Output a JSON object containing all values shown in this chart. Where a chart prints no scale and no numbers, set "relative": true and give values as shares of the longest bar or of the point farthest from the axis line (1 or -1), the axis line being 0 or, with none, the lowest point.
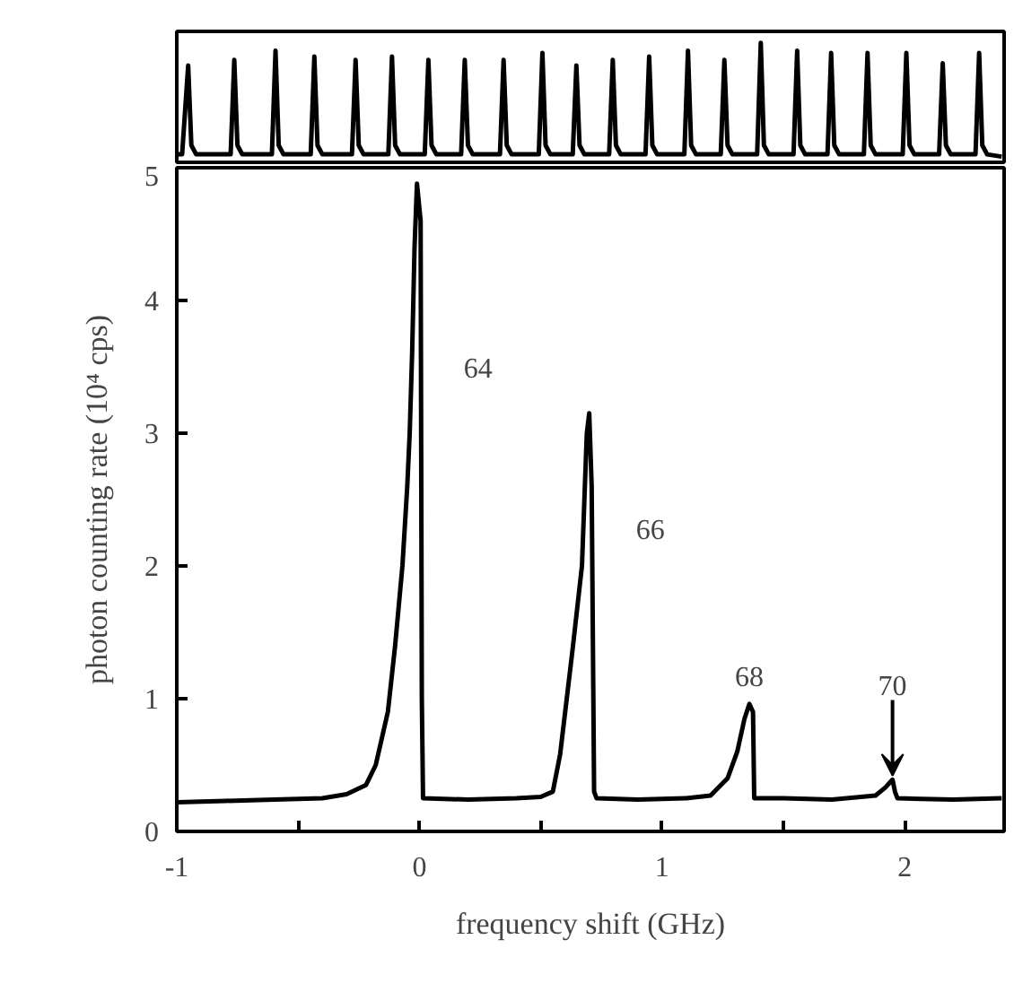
{
  "chart_data": [
    {
      "type": "line",
      "relative": true,
      "grid": false,
      "xlim": [
        -1,
        2.41
      ],
      "color": "#000000",
      "x": [
        -1.0,
        -0.978,
        -0.953,
        -0.94,
        -0.92,
        -0.8,
        -0.778,
        -0.763,
        -0.75,
        -0.73,
        -0.63,
        -0.608,
        -0.593,
        -0.58,
        -0.56,
        -0.47,
        -0.448,
        -0.433,
        -0.42,
        -0.4,
        -0.3,
        -0.278,
        -0.263,
        -0.25,
        -0.23,
        -0.15,
        -0.128,
        -0.113,
        -0.1,
        -0.08,
        0.0,
        0.022,
        0.037,
        0.05,
        0.07,
        0.15,
        0.172,
        0.187,
        0.2,
        0.22,
        0.31,
        0.332,
        0.347,
        0.36,
        0.38,
        0.47,
        0.492,
        0.507,
        0.52,
        0.54,
        0.61,
        0.632,
        0.647,
        0.66,
        0.68,
        0.76,
        0.782,
        0.797,
        0.81,
        0.83,
        0.91,
        0.932,
        0.947,
        0.96,
        0.98,
        1.07,
        1.092,
        1.107,
        1.12,
        1.14,
        1.22,
        1.242,
        1.257,
        1.27,
        1.29,
        1.37,
        1.392,
        1.407,
        1.42,
        1.44,
        1.52,
        1.542,
        1.557,
        1.57,
        1.59,
        1.66,
        1.682,
        1.697,
        1.71,
        1.73,
        1.81,
        1.832,
        1.847,
        1.86,
        1.88,
        1.97,
        1.992,
        2.007,
        2.02,
        2.04,
        2.12,
        2.142,
        2.157,
        2.17,
        2.19,
        2.27,
        2.292,
        2.307,
        2.32,
        2.34,
        2.4
      ],
      "values": [
        0.02,
        0.02,
        0.8,
        0.1,
        0.02,
        0.02,
        0.02,
        0.85,
        0.1,
        0.02,
        0.02,
        0.02,
        0.93,
        0.1,
        0.02,
        0.02,
        0.02,
        0.88,
        0.1,
        0.02,
        0.02,
        0.02,
        0.85,
        0.1,
        0.02,
        0.02,
        0.02,
        0.88,
        0.1,
        0.02,
        0.02,
        0.02,
        0.85,
        0.1,
        0.02,
        0.02,
        0.02,
        0.85,
        0.1,
        0.02,
        0.02,
        0.02,
        0.85,
        0.1,
        0.02,
        0.02,
        0.02,
        0.91,
        0.1,
        0.02,
        0.02,
        0.02,
        0.8,
        0.1,
        0.02,
        0.02,
        0.02,
        0.85,
        0.1,
        0.02,
        0.02,
        0.02,
        0.88,
        0.1,
        0.02,
        0.02,
        0.02,
        0.93,
        0.1,
        0.02,
        0.02,
        0.02,
        0.85,
        0.1,
        0.02,
        0.02,
        0.02,
        1.0,
        0.1,
        0.02,
        0.02,
        0.02,
        0.93,
        0.1,
        0.02,
        0.02,
        0.02,
        0.91,
        0.1,
        0.02,
        0.02,
        0.02,
        0.91,
        0.1,
        0.02,
        0.02,
        0.02,
        0.91,
        0.1,
        0.02,
        0.02,
        0.02,
        0.82,
        0.1,
        0.02,
        0.02,
        0.02,
        0.91,
        0.1,
        0.02,
        0.0
      ]
    },
    {
      "type": "line",
      "xlabel": "frequency shift (GHz)",
      "ylabel": "photon counting rate (10⁴ cps)",
      "grid": false,
      "color": "#000000",
      "xlim": [
        -1,
        2.41
      ],
      "ylim": [
        0,
        5
      ],
      "xticks": [
        -1,
        {
          "value": -0.5,
          "label": null
        },
        0,
        {
          "value": 0.5,
          "label": null
        },
        1,
        {
          "value": 1.5,
          "label": null
        },
        2
      ],
      "yticks": [
        0,
        1,
        2,
        3,
        4,
        5
      ],
      "x": [
        -1.0,
        -0.8,
        -0.6,
        -0.4,
        -0.3,
        -0.22,
        -0.18,
        -0.13,
        -0.1,
        -0.07,
        -0.05,
        -0.04,
        -0.03,
        -0.02,
        -0.01,
        0.005,
        0.01,
        0.015,
        0.2,
        0.4,
        0.5,
        0.55,
        0.58,
        0.63,
        0.67,
        0.69,
        0.7,
        0.71,
        0.72,
        0.73,
        0.9,
        1.1,
        1.2,
        1.27,
        1.31,
        1.34,
        1.36,
        1.375,
        1.38,
        1.5,
        1.7,
        1.88,
        1.92,
        1.95,
        1.96,
        1.97,
        2.2,
        2.4
      ],
      "values": [
        0.22,
        0.23,
        0.24,
        0.25,
        0.28,
        0.35,
        0.5,
        0.9,
        1.4,
        2.0,
        2.6,
        3.0,
        3.6,
        4.4,
        4.88,
        4.6,
        1.0,
        0.25,
        0.24,
        0.25,
        0.26,
        0.3,
        0.58,
        1.35,
        2.0,
        3.0,
        3.15,
        2.6,
        0.3,
        0.25,
        0.24,
        0.25,
        0.27,
        0.4,
        0.6,
        0.85,
        0.96,
        0.9,
        0.25,
        0.25,
        0.24,
        0.27,
        0.33,
        0.39,
        0.3,
        0.25,
        0.24,
        0.25
      ],
      "annotations": [
        "64",
        "66",
        {
          "text": "68",
          "x": 1.36,
          "y": 0.96
        },
        {
          "text": "70",
          "x": 1.95,
          "y": 0.39
        }
      ]
    }
  ]
}
